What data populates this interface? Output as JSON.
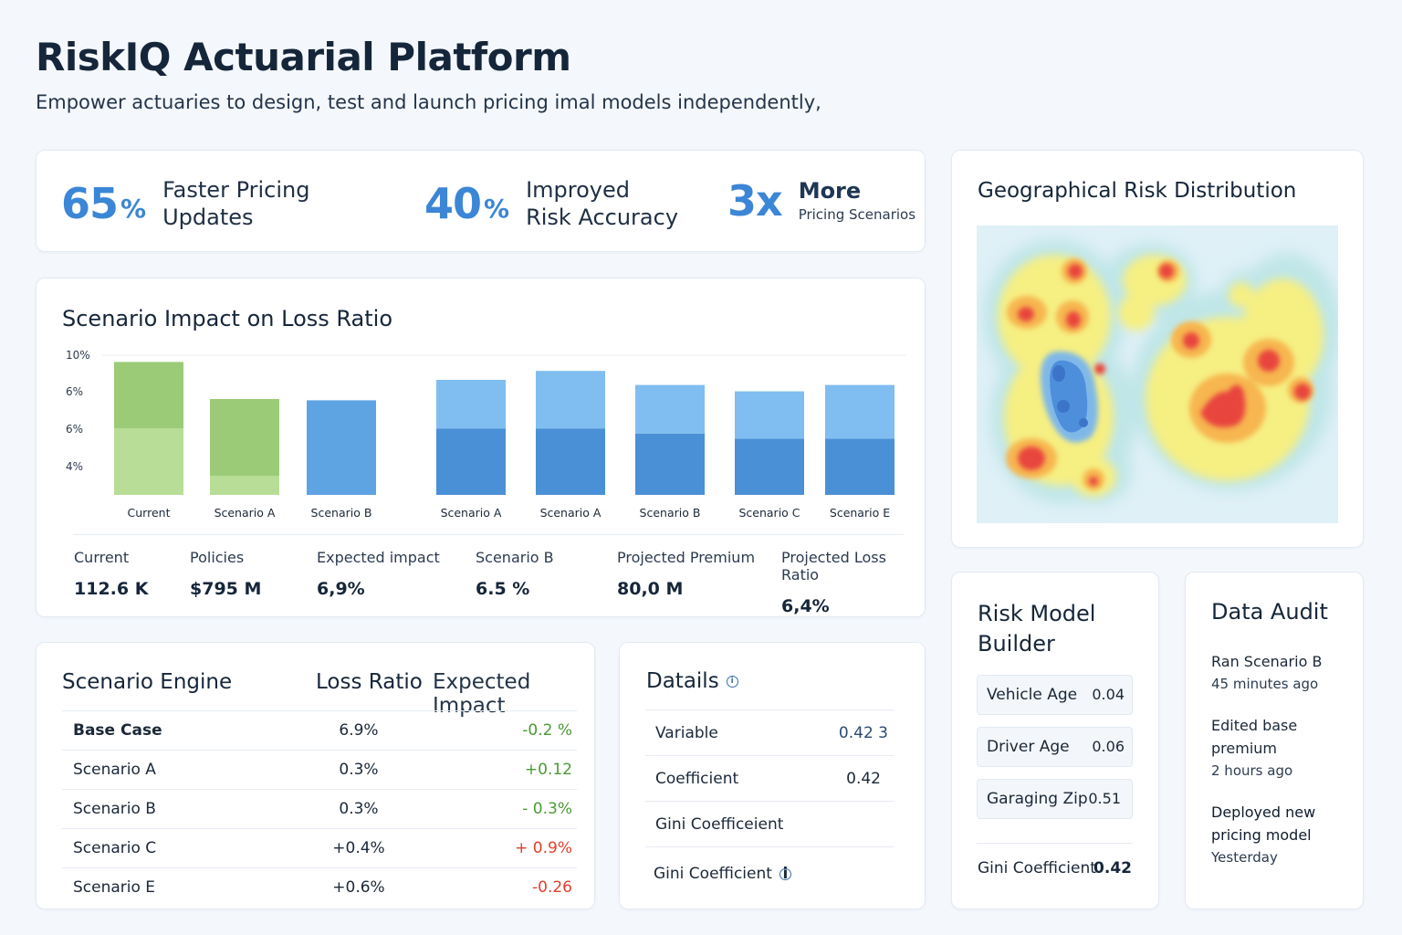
{
  "header": {
    "title": "RiskIQ Actuarial Platform",
    "subtitle": "Empower actuaries to design, test and launch pricing imal models independently,"
  },
  "stats": [
    {
      "number": "65",
      "unit": "%",
      "line1": "Faster Pricing",
      "line2": "Updates"
    },
    {
      "number": "40",
      "unit": "%",
      "line1": "Improyed",
      "line2": "Risk Accuracy"
    },
    {
      "number": "3x",
      "unit": "",
      "line1": "More",
      "line2": "Pricing Scenarios"
    }
  ],
  "chart_data": {
    "type": "bar",
    "title": "Scenario Impact on Loss Ratio",
    "y_tick_labels": [
      "10%",
      "6%",
      "6%",
      "4%"
    ],
    "categories": [
      "Current",
      "Scenario A",
      "Scenario B",
      "Scenario A",
      "Scenario A",
      "Scenario B",
      "Scenario C",
      "Scenario E"
    ],
    "series": [
      {
        "values": [
          5.2,
          1.5,
          7.4,
          5.2,
          5.2,
          4.8,
          4.4,
          4.4
        ]
      },
      {
        "values": [
          5.2,
          6.0,
          0,
          3.8,
          4.5,
          3.8,
          3.7,
          4.2
        ]
      }
    ],
    "colors": {
      "green_dark": "#9ccb77",
      "green_light": "#b8dd97",
      "blue_dark": "#4a90d6",
      "blue_light": "#80bdf0",
      "blue_single": "#5ea3e2"
    }
  },
  "chart_metrics": [
    {
      "label": "Current",
      "value": "112.6 K"
    },
    {
      "label": "Policies",
      "value": "$795 M"
    },
    {
      "label": "Expected impact",
      "value": "6,9%"
    },
    {
      "label": "Scenario B",
      "value": "6.5 %"
    },
    {
      "label": "Projected Premium",
      "value": "80,0 M"
    },
    {
      "label": "Projected Loss Ratio",
      "value": "6,4%"
    }
  ],
  "scenario_engine": {
    "title": "Scenario Engine",
    "col_loss": "Loss Ratio",
    "col_impact": "Expected Impact",
    "rows": [
      {
        "name": "Base Case",
        "loss": "6.9%",
        "impact": "-0.2 %",
        "tone": "pos"
      },
      {
        "name": "Scenario A",
        "loss": "0.3%",
        "impact": "+0.12",
        "tone": "pos"
      },
      {
        "name": "Scenario B",
        "loss": "0.3%",
        "impact": "- 0.3%",
        "tone": "pos"
      },
      {
        "name": "Scenario C",
        "loss": "+0.4%",
        "impact": "+ 0.9%",
        "tone": "neg"
      },
      {
        "name": "Scenario E",
        "loss": "+0.6%",
        "impact": "-0.26",
        "tone": "neg"
      }
    ]
  },
  "details": {
    "title": "Datails",
    "rows": [
      {
        "label": "Variable",
        "value": "0.42 3"
      },
      {
        "label": "Coefficient",
        "value": "0.42"
      },
      {
        "label": "Gini Coefficeient",
        "value": ""
      },
      {
        "label": "Gini Coefficient",
        "value": ""
      }
    ]
  },
  "geo": {
    "title": "Geographical Risk Distribution"
  },
  "model_builder": {
    "title_line1": "Risk Model",
    "title_line2": "Builder",
    "rows": [
      {
        "label": "Vehicle Age",
        "value": "0.04"
      },
      {
        "label": "Driver Age",
        "value": "0.06"
      },
      {
        "label": "Garaging Zip",
        "value": "0.51"
      }
    ],
    "gini_label": "Gini Coefficient",
    "gini_value": "0.42"
  },
  "audit": {
    "title": "Data Audit",
    "items": [
      {
        "line1": "Ran Scenario B",
        "line2": "",
        "time": "45 minutes ago"
      },
      {
        "line1": "Edited base",
        "line2": "premium",
        "time": "2 hours ago"
      },
      {
        "line1": "Deployed new",
        "line2": "pricing model",
        "time": "Yesterday"
      }
    ]
  }
}
